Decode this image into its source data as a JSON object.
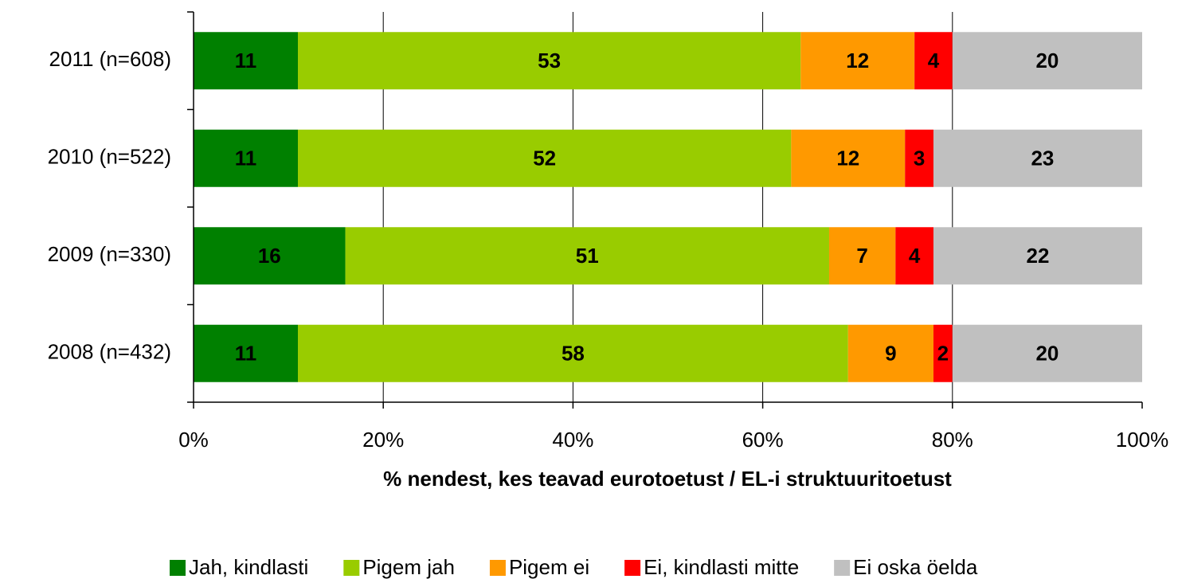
{
  "chart_data": {
    "type": "stacked_barh",
    "xlabel": "% nendest, kes teavad eurotoetust / EL-i struktuuritoetust",
    "categories": [
      "2011 (n=608)",
      "2010 (n=522)",
      "2009 (n=330)",
      "2008 (n=432)"
    ],
    "series": [
      {
        "name": "Jah, kindlasti",
        "color": "#008000",
        "label_color": "#ffffff",
        "values": [
          11,
          11,
          16,
          11
        ]
      },
      {
        "name": "Pigem jah",
        "color": "#99cc00",
        "label_color": "#000000",
        "values": [
          53,
          52,
          51,
          58
        ]
      },
      {
        "name": "Pigem ei",
        "color": "#ff9900",
        "label_color": "#000000",
        "values": [
          12,
          12,
          7,
          9
        ]
      },
      {
        "name": "Ei, kindlasti mitte",
        "color": "#ff0000",
        "label_color": "#ffffff",
        "values": [
          4,
          3,
          4,
          2
        ]
      },
      {
        "name": "Ei oska öelda",
        "color": "#c0c0c0",
        "label_color": "#000000",
        "values": [
          20,
          23,
          22,
          20
        ]
      }
    ],
    "xlim": [
      0,
      100
    ],
    "xticks": [
      {
        "value": 0,
        "label": "0%"
      },
      {
        "value": 20,
        "label": "20%"
      },
      {
        "value": 40,
        "label": "40%"
      },
      {
        "value": 60,
        "label": "60%"
      },
      {
        "value": 80,
        "label": "80%"
      },
      {
        "value": 100,
        "label": "100%"
      }
    ],
    "grid": true,
    "legend": "bottom"
  }
}
